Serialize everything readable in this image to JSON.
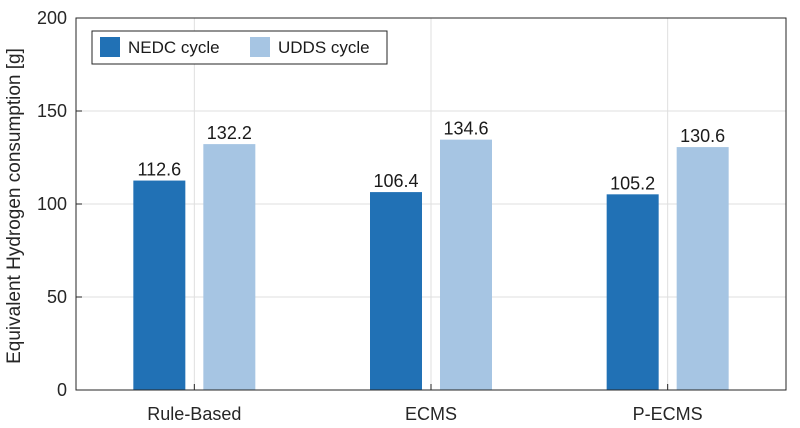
{
  "chart_data": {
    "type": "bar",
    "categories": [
      "Rule-Based",
      "ECMS",
      "P-ECMS"
    ],
    "series": [
      {
        "name": "NEDC cycle",
        "values": [
          112.6,
          106.4,
          105.2
        ],
        "color": "#2171b5"
      },
      {
        "name": "UDDS cycle",
        "values": [
          132.2,
          134.6,
          130.6
        ],
        "color": "#a6c5e3"
      }
    ],
    "data_labels": [
      [
        "112.6",
        "106.4",
        "105.2"
      ],
      [
        "132.2",
        "134.6",
        "130.6"
      ]
    ],
    "title": "",
    "xlabel": "",
    "ylabel": "Equivalent Hydrogen consumption [g]",
    "ylim": [
      0,
      200
    ],
    "yticks": [
      0,
      50,
      100,
      150,
      200
    ],
    "grid": true,
    "legend": "top-left"
  }
}
